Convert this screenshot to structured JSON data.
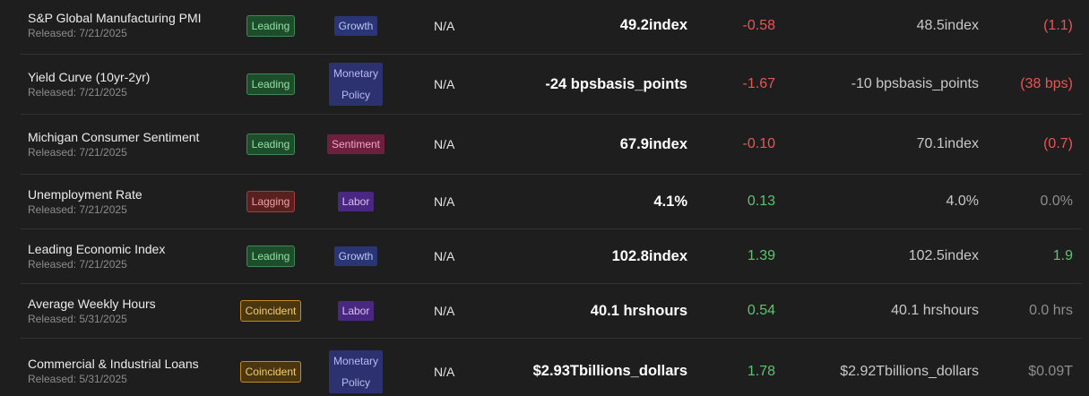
{
  "colors": {
    "background": "#1e1e1e",
    "negative": "#e85555",
    "positive": "#5cc46e",
    "neutral": "#8d8d8d"
  },
  "rows": [
    {
      "name": "S&P Global Manufacturing PMI",
      "released": "Released: 7/21/2025",
      "type": "Leading",
      "category": "Growth",
      "forecast": "N/A",
      "value": "49.2index",
      "change": "-0.58",
      "previous": "48.5index",
      "difference": "(1.1)"
    },
    {
      "name": "Yield Curve (10yr-2yr)",
      "released": "Released: 7/21/2025",
      "type": "Leading",
      "category_line1": "Monetary",
      "category_line2": "Policy",
      "forecast": "N/A",
      "value": "-24 bpsbasis_points",
      "change": "-1.67",
      "previous": "-10 bpsbasis_points",
      "difference": "(38 bps)"
    },
    {
      "name": "Michigan Consumer Sentiment",
      "released": "Released: 7/21/2025",
      "type": "Leading",
      "category": "Sentiment",
      "forecast": "N/A",
      "value": "67.9index",
      "change": "-0.10",
      "previous": "70.1index",
      "difference": "(0.7)"
    },
    {
      "name": "Unemployment Rate",
      "released": "Released: 7/21/2025",
      "type": "Lagging",
      "category": "Labor",
      "forecast": "N/A",
      "value": "4.1%",
      "change": "0.13",
      "previous": "4.0%",
      "difference": "0.0%"
    },
    {
      "name": "Leading Economic Index",
      "released": "Released: 7/21/2025",
      "type": "Leading",
      "category": "Growth",
      "forecast": "N/A",
      "value": "102.8index",
      "change": "1.39",
      "previous": "102.5index",
      "difference": "1.9"
    },
    {
      "name": "Average Weekly Hours",
      "released": "Released: 5/31/2025",
      "type": "Coincident",
      "category": "Labor",
      "forecast": "N/A",
      "value": "40.1 hrshours",
      "change": "0.54",
      "previous": "40.1 hrshours",
      "difference": "0.0 hrs"
    },
    {
      "name": "Commercial & Industrial Loans",
      "released": "Released: 5/31/2025",
      "type": "Coincident",
      "category_line1": "Monetary",
      "category_line2": "Policy",
      "forecast": "N/A",
      "value": "$2.93Tbillions_dollars",
      "change": "1.78",
      "previous": "$2.92Tbillions_dollars",
      "difference": "$0.09T"
    }
  ]
}
